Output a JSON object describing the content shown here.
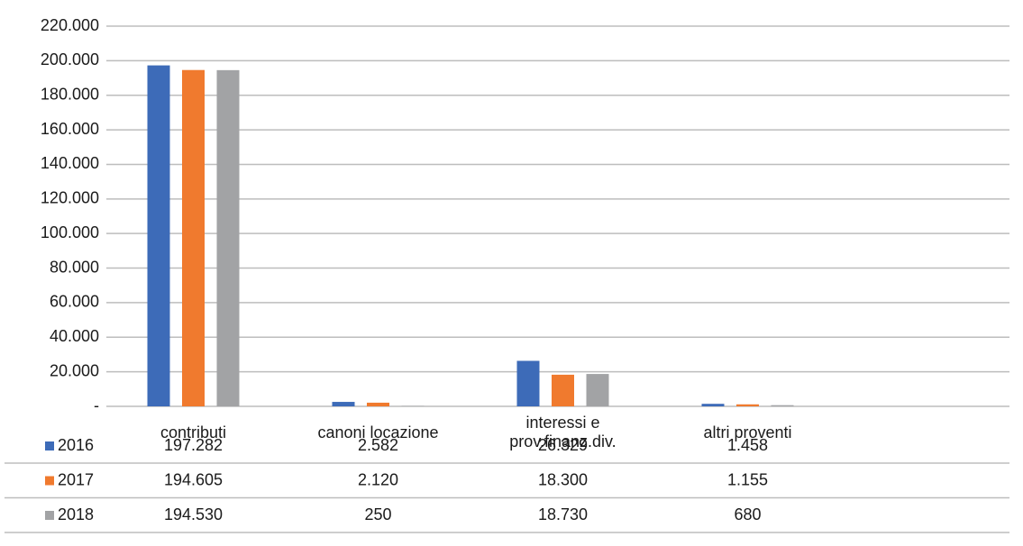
{
  "chart_data": {
    "type": "bar",
    "categories": [
      "contributi",
      "canoni locazione",
      "interessi e prov.finanz.div.",
      "altri proventi"
    ],
    "series": [
      {
        "name": "2016",
        "color": "#3d6bb8",
        "values": [
          197282,
          2582,
          26329,
          1458
        ],
        "value_labels": [
          "197.282",
          "2.582",
          "26.329",
          "1.458"
        ]
      },
      {
        "name": "2017",
        "color": "#f07a2e",
        "values": [
          194605,
          2120,
          18300,
          1155
        ],
        "value_labels": [
          "194.605",
          "2.120",
          "18.300",
          "1.155"
        ]
      },
      {
        "name": "2018",
        "color": "#a2a3a5",
        "values": [
          194530,
          250,
          18730,
          680
        ],
        "value_labels": [
          "194.530",
          "250",
          "18.730",
          "680"
        ]
      }
    ],
    "ylim": [
      0,
      220000
    ],
    "yticks": [
      {
        "value": 0,
        "label": "-"
      },
      {
        "value": 20000,
        "label": "20.000"
      },
      {
        "value": 40000,
        "label": "40.000"
      },
      {
        "value": 60000,
        "label": "60.000"
      },
      {
        "value": 80000,
        "label": "80.000"
      },
      {
        "value": 100000,
        "label": "100.000"
      },
      {
        "value": 120000,
        "label": "120.000"
      },
      {
        "value": 140000,
        "label": "140.000"
      },
      {
        "value": 160000,
        "label": "160.000"
      },
      {
        "value": 180000,
        "label": "180.000"
      },
      {
        "value": 200000,
        "label": "200.000"
      },
      {
        "value": 220000,
        "label": "220.000"
      }
    ],
    "grid": true,
    "data_table": true
  }
}
